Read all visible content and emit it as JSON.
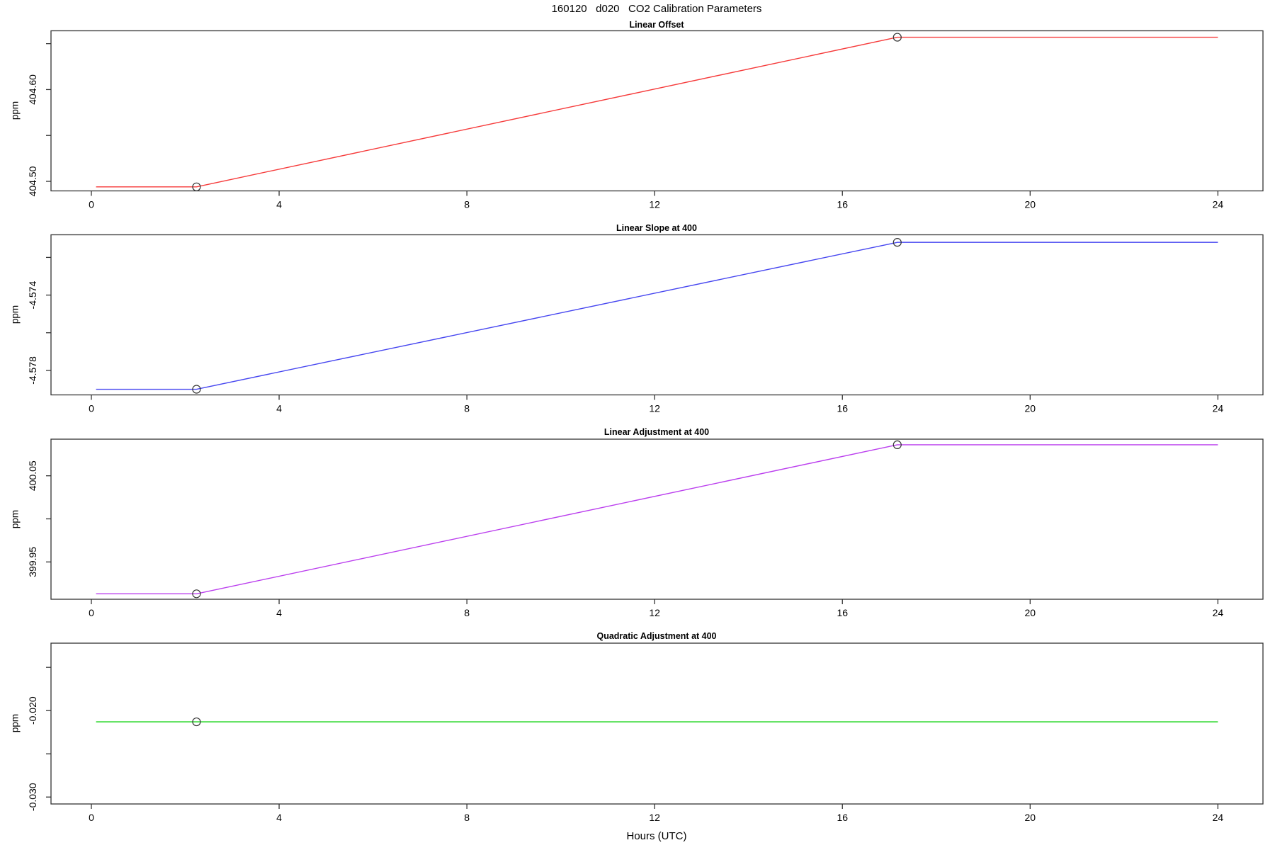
{
  "header": {
    "title": "160120   d020   CO2 Calibration Parameters"
  },
  "x_axis": {
    "label": "Hours (UTC)",
    "ticks": [
      0,
      4,
      8,
      12,
      16,
      20,
      24
    ],
    "range": [
      -0.86,
      24.96
    ]
  },
  "style": {
    "axis_color": "#333333",
    "text_color": "#000000",
    "marker": "open-circle",
    "marker_color": "#333333"
  },
  "chart_data": [
    {
      "type": "line",
      "title": "Linear Offset",
      "ylabel": "ppm",
      "color": "#f63b3b",
      "x": [
        0.1,
        2.24,
        17.17,
        24
      ],
      "y": [
        404.494,
        404.494,
        404.657,
        404.657
      ],
      "markers": [
        [
          2.24,
          404.494
        ],
        [
          17.17,
          404.657
        ]
      ],
      "ylim": [
        404.4896,
        404.664
      ],
      "y_ticks": [
        {
          "value": 404.65,
          "label": ""
        },
        {
          "value": 404.6,
          "label": "404.60"
        },
        {
          "value": 404.55,
          "label": ""
        },
        {
          "value": 404.5,
          "label": "404.50"
        }
      ]
    },
    {
      "type": "line",
      "title": "Linear Slope at 400",
      "ylabel": "ppm",
      "color": "#4646f0",
      "x": [
        0.1,
        2.24,
        17.17,
        24
      ],
      "y": [
        -4.579,
        -4.579,
        -4.5712,
        -4.5712
      ],
      "markers": [
        [
          2.24,
          -4.579
        ],
        [
          17.17,
          -4.5712
        ]
      ],
      "ylim": [
        -4.5793,
        -4.5708
      ],
      "y_ticks": [
        {
          "value": -4.572,
          "label": ""
        },
        {
          "value": -4.574,
          "label": "-4.574"
        },
        {
          "value": -4.576,
          "label": ""
        },
        {
          "value": -4.578,
          "label": "-4.578"
        }
      ]
    },
    {
      "type": "line",
      "title": "Linear Adjustment at 400",
      "ylabel": "ppm",
      "color": "#bb3fee",
      "x": [
        0.1,
        2.24,
        17.17,
        24
      ],
      "y": [
        399.913,
        399.913,
        400.086,
        400.086
      ],
      "markers": [
        [
          2.24,
          399.913
        ],
        [
          17.17,
          400.086
        ]
      ],
      "ylim": [
        399.9067,
        400.0925
      ],
      "y_ticks": [
        {
          "value": 400.05,
          "label": "400.05"
        },
        {
          "value": 400.0,
          "label": ""
        },
        {
          "value": 399.95,
          "label": "399.95"
        }
      ]
    },
    {
      "type": "line",
      "title": "Quadratic Adjustment at 400",
      "ylabel": "ppm",
      "color": "#15d415",
      "x": [
        0.1,
        24
      ],
      "y": [
        -0.0213,
        -0.0213
      ],
      "markers": [
        [
          2.24,
          -0.0213
        ]
      ],
      "ylim": [
        -0.0308,
        -0.0122
      ],
      "y_ticks": [
        {
          "value": -0.015,
          "label": ""
        },
        {
          "value": -0.02,
          "label": "-0.020"
        },
        {
          "value": -0.025,
          "label": ""
        },
        {
          "value": -0.03,
          "label": "-0.030"
        }
      ]
    }
  ]
}
